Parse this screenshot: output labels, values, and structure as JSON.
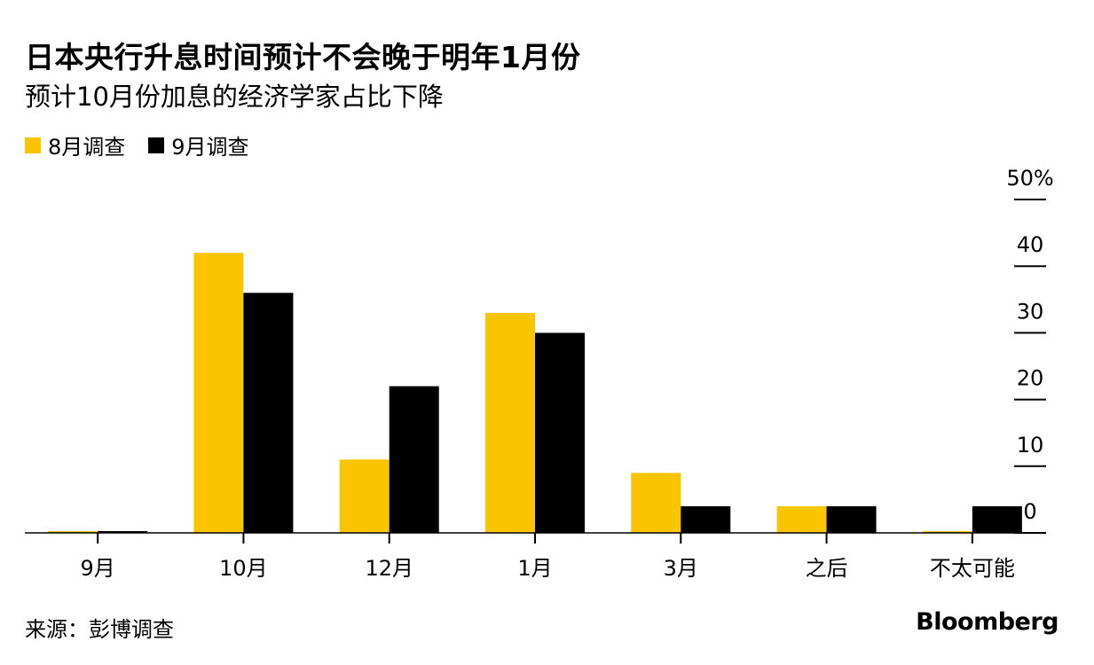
{
  "title": "日本央行升息时间预计不会晚于明年1月份",
  "subtitle": "预计10月份加息的经济学家占比下降",
  "source": "来源：彭博调查",
  "brand": "Bloomberg",
  "colors": {
    "aug": "#FBC400",
    "sep": "#000000",
    "gridline": "#000000"
  },
  "chart_data": {
    "type": "bar",
    "categories": [
      "9月",
      "10月",
      "12月",
      "1月",
      "3月",
      "之后",
      "不太可能"
    ],
    "series": [
      {
        "name": "8月调查",
        "values": [
          0,
          42,
          11,
          33,
          9,
          4,
          0
        ]
      },
      {
        "name": "9月调查",
        "values": [
          0,
          36,
          22,
          30,
          4,
          4,
          4
        ]
      }
    ],
    "ylim": [
      0,
      50
    ],
    "yticks": [
      0,
      10,
      20,
      30,
      40,
      50
    ],
    "ytick_labels": [
      "0",
      "10",
      "20",
      "30",
      "40",
      "50%"
    ],
    "y_axis_side": "right",
    "legend_placement": "top-left"
  }
}
